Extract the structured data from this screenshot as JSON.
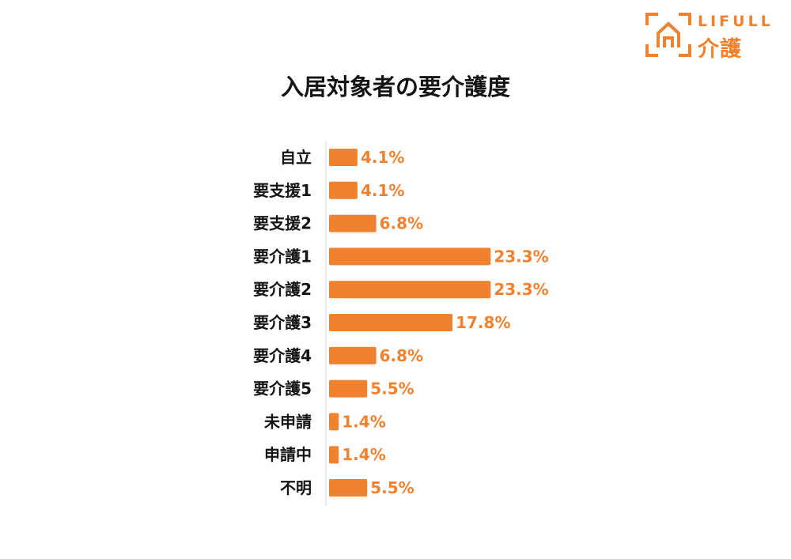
{
  "logo": {
    "word": "LIFULL",
    "sub": "介護"
  },
  "colors": {
    "accent": "#f0812f",
    "bar": "#f0812f",
    "text": "#141414",
    "axis": "#d9d9d9"
  },
  "chart_data": {
    "type": "bar",
    "orientation": "horizontal",
    "title": "入居対象者の要介護度",
    "xlabel": "",
    "ylabel": "",
    "unit": "%",
    "grid": false,
    "legend": "none",
    "categories": [
      "自立",
      "要支援1",
      "要支援2",
      "要介護1",
      "要介護2",
      "要介護3",
      "要介護4",
      "要介護5",
      "未申請",
      "申請中",
      "不明"
    ],
    "values": [
      4.1,
      4.1,
      6.8,
      23.3,
      23.3,
      17.8,
      6.8,
      5.5,
      1.4,
      1.4,
      5.5
    ],
    "labels": [
      "4.1%",
      "4.1%",
      "6.8%",
      "23.3%",
      "23.3%",
      "17.8%",
      "6.8%",
      "5.5%",
      "1.4%",
      "1.4%",
      "5.5%"
    ]
  }
}
